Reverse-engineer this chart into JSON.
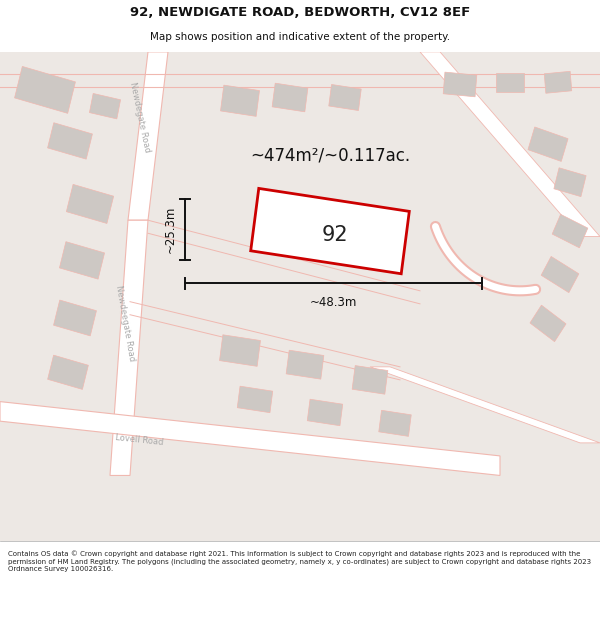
{
  "title_line1": "92, NEWDIGATE ROAD, BEDWORTH, CV12 8EF",
  "title_line2": "Map shows position and indicative extent of the property.",
  "footer_text": "Contains OS data © Crown copyright and database right 2021. This information is subject to Crown copyright and database rights 2023 and is reproduced with the permission of HM Land Registry. The polygons (including the associated geometry, namely x, y co-ordinates) are subject to Crown copyright and database rights 2023 Ordnance Survey 100026316.",
  "area_label": "~474m²/~0.117ac.",
  "width_label": "~48.3m",
  "height_label": "~25.3m",
  "property_number": "92",
  "map_bg": "#ede8e4",
  "road_color": "#f0b8b0",
  "road_fill": "#ffffff",
  "building_fill": "#cdc8c4",
  "property_outline": "#cc0000",
  "property_fill": "#ffffff",
  "dim_line_color": "#111111",
  "road_label_color": "#aaaaaa",
  "title_color": "#111111",
  "footer_color": "#222222"
}
